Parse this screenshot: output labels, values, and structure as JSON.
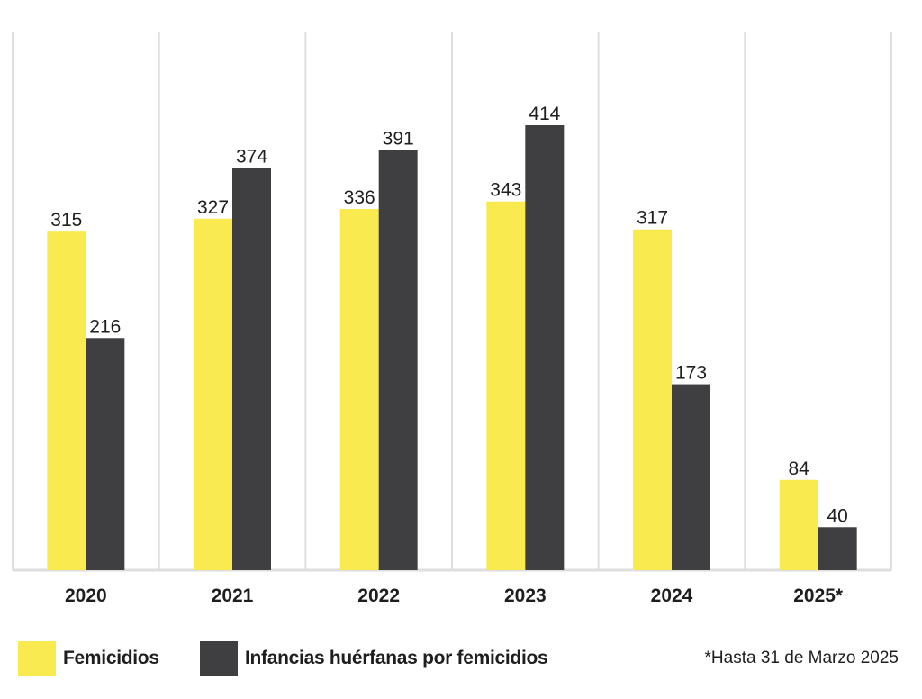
{
  "chart_data": {
    "type": "bar",
    "categories": [
      "2020",
      "2021",
      "2022",
      "2023",
      "2024",
      "2025*"
    ],
    "series": [
      {
        "name": "Femicidios",
        "color": "#f8ea4f",
        "values": [
          315,
          327,
          336,
          343,
          317,
          84
        ]
      },
      {
        "name": "Infancias huérfanas por femicidios",
        "color": "#3f3f42",
        "values": [
          216,
          374,
          391,
          414,
          173,
          40
        ]
      }
    ],
    "ylim": [
      0,
      460
    ],
    "grid": "vertical separators",
    "legend_position": "bottom-left",
    "title": "",
    "xlabel": "",
    "ylabel": ""
  },
  "footnote": "*Hasta 31 de Marzo 2025"
}
